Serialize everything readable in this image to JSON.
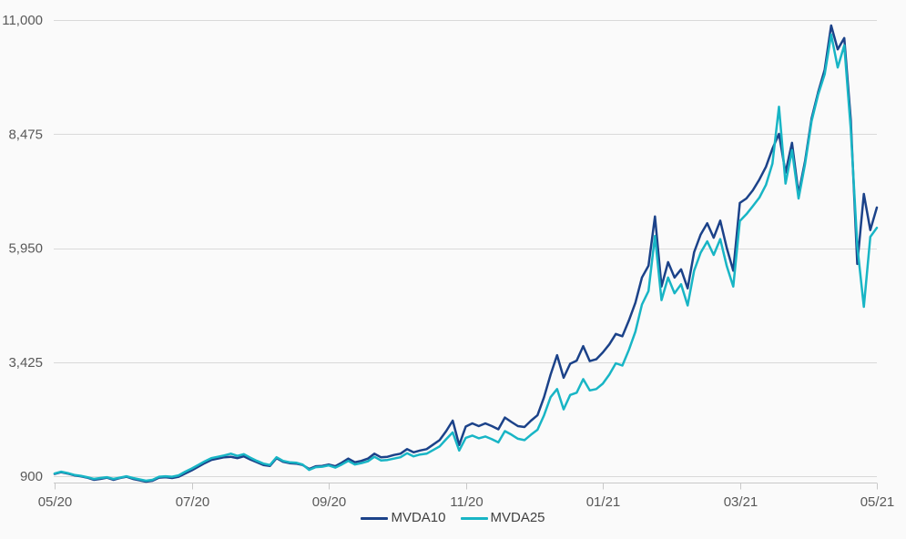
{
  "chart_data": {
    "type": "line",
    "title": "",
    "grid": "horizontal",
    "legend_position": "bottom-center",
    "x_tick_labels": [
      "05/20",
      "07/20",
      "09/20",
      "11/20",
      "01/21",
      "03/21",
      "05/21"
    ],
    "y_tick_labels": [
      "900",
      "3,425",
      "5,950",
      "8,475",
      "11,000"
    ],
    "y_ticks": [
      900,
      3425,
      5950,
      8475,
      11000
    ],
    "ylim": [
      740,
      11000
    ],
    "series": [
      {
        "name": "MVDA10",
        "color": "#1b4289",
        "values": [
          950,
          990,
          960,
          920,
          900,
          870,
          820,
          840,
          870,
          820,
          860,
          890,
          840,
          810,
          780,
          800,
          870,
          880,
          860,
          890,
          960,
          1030,
          1110,
          1190,
          1260,
          1290,
          1320,
          1330,
          1300,
          1340,
          1270,
          1210,
          1150,
          1130,
          1300,
          1220,
          1190,
          1180,
          1150,
          1060,
          1120,
          1130,
          1160,
          1120,
          1200,
          1290,
          1210,
          1240,
          1290,
          1400,
          1320,
          1330,
          1370,
          1400,
          1500,
          1430,
          1470,
          1500,
          1600,
          1700,
          1900,
          2130,
          1590,
          2000,
          2070,
          2010,
          2070,
          2010,
          1940,
          2200,
          2100,
          2010,
          1990,
          2130,
          2250,
          2650,
          3150,
          3580,
          3080,
          3390,
          3460,
          3780,
          3450,
          3490,
          3640,
          3820,
          4050,
          4000,
          4350,
          4740,
          5300,
          5560,
          6650,
          5100,
          5640,
          5300,
          5480,
          5060,
          5860,
          6250,
          6500,
          6180,
          6560,
          5950,
          5450,
          6950,
          7050,
          7230,
          7470,
          7750,
          8150,
          8480,
          7620,
          8280,
          7150,
          7880,
          8820,
          9400,
          9900,
          10880,
          10350,
          10600,
          8800,
          5600,
          7150,
          6350,
          6850
        ]
      },
      {
        "name": "MVDA25",
        "color": "#18b5c5",
        "values": [
          960,
          1000,
          970,
          930,
          910,
          880,
          840,
          860,
          880,
          840,
          870,
          900,
          860,
          830,
          800,
          820,
          890,
          900,
          890,
          920,
          1000,
          1070,
          1150,
          1230,
          1300,
          1330,
          1360,
          1400,
          1350,
          1390,
          1310,
          1240,
          1180,
          1150,
          1320,
          1240,
          1210,
          1200,
          1160,
          1040,
          1100,
          1110,
          1140,
          1090,
          1160,
          1240,
          1160,
          1190,
          1230,
          1330,
          1250,
          1260,
          1290,
          1320,
          1410,
          1340,
          1380,
          1400,
          1480,
          1560,
          1720,
          1870,
          1470,
          1750,
          1800,
          1740,
          1780,
          1720,
          1650,
          1900,
          1820,
          1730,
          1700,
          1820,
          1930,
          2250,
          2650,
          2830,
          2380,
          2700,
          2750,
          3050,
          2800,
          2830,
          2950,
          3150,
          3400,
          3350,
          3700,
          4100,
          4700,
          5000,
          6220,
          4800,
          5300,
          4950,
          5150,
          4680,
          5450,
          5850,
          6100,
          5800,
          6150,
          5550,
          5100,
          6550,
          6700,
          6880,
          7070,
          7350,
          7820,
          9080,
          7380,
          8120,
          7050,
          7820,
          8760,
          9350,
          9800,
          10680,
          9950,
          10440,
          8600,
          6000,
          4650,
          6200,
          6400
        ]
      }
    ]
  },
  "legend": {
    "items": [
      {
        "label": "MVDA10"
      },
      {
        "label": "MVDA25"
      }
    ]
  },
  "colors": {
    "background": "#fafafa",
    "grid_line": "#d9d9d9",
    "axis_line": "#c8c8c8",
    "tick_text": "#595959",
    "legend_text": "#404040"
  }
}
